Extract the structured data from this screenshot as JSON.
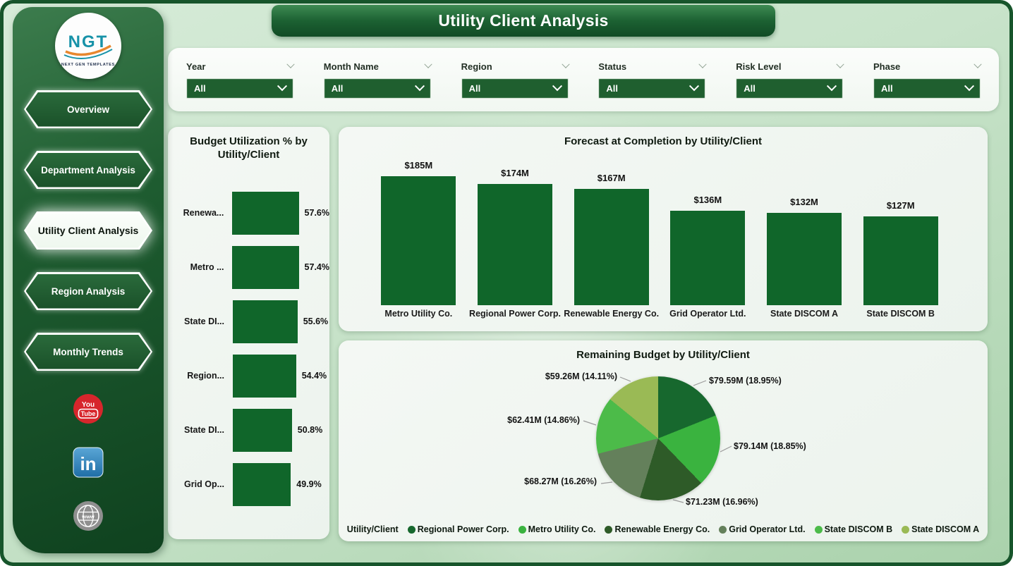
{
  "app": {
    "title": "Utility Client Analysis"
  },
  "sidebar": {
    "logo": {
      "text": "NGT",
      "subtext": "NEXT GEN TEMPLATES"
    },
    "items": [
      {
        "label": "Overview",
        "active": false
      },
      {
        "label": "Department Analysis",
        "active": false
      },
      {
        "label": "Utility Client Analysis",
        "active": true
      },
      {
        "label": "Region Analysis",
        "active": false
      },
      {
        "label": "Monthly Trends",
        "active": false
      }
    ],
    "social": [
      {
        "name": "youtube",
        "lines": [
          "You",
          "Tube"
        ],
        "color": "#d7262c"
      },
      {
        "name": "linkedin",
        "lines": [
          "in"
        ],
        "color": "#2d7bb8"
      },
      {
        "name": "website",
        "lines": [
          "www"
        ],
        "color": "#8f8f8f"
      }
    ]
  },
  "filters": [
    {
      "label": "Year",
      "value": "All"
    },
    {
      "label": "Month Name",
      "value": "All"
    },
    {
      "label": "Region",
      "value": "All"
    },
    {
      "label": "Status",
      "value": "All"
    },
    {
      "label": "Risk Level",
      "value": "All"
    },
    {
      "label": "Phase",
      "value": "All"
    }
  ],
  "colors": {
    "bar_green": "#10662a",
    "sidebar_dark": "#0f421f",
    "banner_green": "#1c6132",
    "dropdown_green": "#1f5f2f"
  },
  "chart_data": [
    {
      "type": "bar",
      "orientation": "horizontal",
      "title": "Budget Utilization % by Utility/Client",
      "categories": [
        "Renewa...",
        "Metro ...",
        "State DI...",
        "Region...",
        "State DI...",
        "Grid Op..."
      ],
      "values": [
        57.6,
        57.4,
        55.6,
        54.4,
        50.8,
        49.9
      ],
      "value_labels": [
        "57.6%",
        "57.4%",
        "55.6%",
        "54.4%",
        "50.8%",
        "49.9%"
      ],
      "bar_color": "#10662a",
      "xlim": [
        0,
        60
      ],
      "grid": false
    },
    {
      "type": "bar",
      "orientation": "vertical",
      "title": "Forecast at Completion by Utility/Client",
      "categories": [
        "Metro Utility Co.",
        "Regional Power Corp.",
        "Renewable Energy Co.",
        "Grid Operator Ltd.",
        "State DISCOM A",
        "State DISCOM B"
      ],
      "values": [
        185,
        174,
        167,
        136,
        132,
        127
      ],
      "value_labels": [
        "$185M",
        "$174M",
        "$167M",
        "$136M",
        "$132M",
        "$127M"
      ],
      "bar_color": "#10662a",
      "ylim": [
        0,
        200
      ],
      "grid": false
    },
    {
      "type": "pie",
      "title": "Remaining Budget by Utility/Client",
      "legend_title": "Utility/Client",
      "legend_position": "bottom",
      "slices": [
        {
          "name": "Regional Power Corp.",
          "value": 79.59,
          "pct": 18.95,
          "value_label": "$79.59M (18.95%)",
          "color": "#17682e"
        },
        {
          "name": "Metro Utility Co.",
          "value": 79.14,
          "pct": 18.85,
          "value_label": "$79.14M (18.85%)",
          "color": "#3ab33f"
        },
        {
          "name": "Renewable Energy Co.",
          "value": 71.23,
          "pct": 16.96,
          "value_label": "$71.23M (16.96%)",
          "color": "#2e5b28"
        },
        {
          "name": "Grid Operator Ltd.",
          "value": 68.27,
          "pct": 16.26,
          "value_label": "$68.27M (16.26%)",
          "color": "#64805b"
        },
        {
          "name": "State DISCOM B",
          "value": 62.41,
          "pct": 14.86,
          "value_label": "$62.41M (14.86%)",
          "color": "#4cbb49"
        },
        {
          "name": "State DISCOM A",
          "value": 59.26,
          "pct": 14.11,
          "value_label": "$59.26M (14.11%)",
          "color": "#9aba55"
        }
      ]
    }
  ]
}
